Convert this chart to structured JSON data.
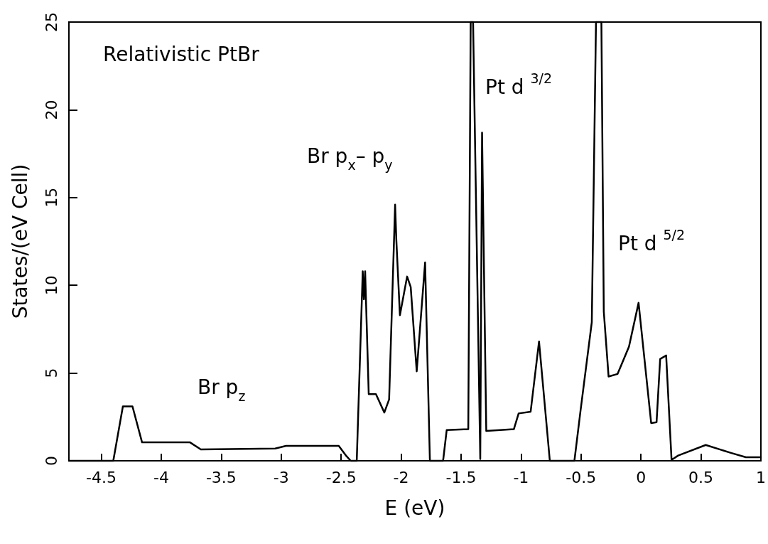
{
  "chart_data": {
    "type": "line",
    "xlabel": "E (eV)",
    "ylabel": "States/(eV Cell)",
    "x": [
      -4.77,
      -4.4,
      -4.32,
      -4.24,
      -4.16,
      -3.76,
      -3.67,
      -3.05,
      -2.96,
      -2.52,
      -2.46,
      -2.42,
      -2.37,
      -2.32,
      -2.31,
      -2.3,
      -2.27,
      -2.21,
      -2.14,
      -2.1,
      -2.05,
      -2.04,
      -2.01,
      -1.95,
      -1.92,
      -1.87,
      -1.8,
      -1.76,
      -1.65,
      -1.62,
      -1.44,
      -1.42,
      -1.4,
      -1.34,
      -1.325,
      -1.29,
      -1.06,
      -1.02,
      -0.92,
      -0.85,
      -0.76,
      -0.555,
      -0.505,
      -0.41,
      -0.375,
      -0.33,
      -0.31,
      -0.27,
      -0.195,
      -0.1,
      -0.02,
      0.085,
      0.13,
      0.16,
      0.21,
      0.255,
      0.31,
      0.54,
      0.75,
      0.875,
      1.0
    ],
    "values": [
      0,
      0,
      3.1,
      3.1,
      1.05,
      1.05,
      0.65,
      0.7,
      0.85,
      0.85,
      0.3,
      0,
      0,
      10.8,
      9.2,
      10.8,
      3.8,
      3.8,
      2.75,
      3.5,
      14.6,
      12.6,
      8.3,
      10.5,
      9.9,
      5.1,
      11.3,
      0,
      0,
      1.75,
      1.8,
      25,
      25,
      0.1,
      18.7,
      1.7,
      1.8,
      2.7,
      2.8,
      6.8,
      0,
      0,
      2.8,
      7.9,
      25,
      25,
      8.5,
      4.8,
      4.95,
      6.5,
      9.0,
      2.15,
      2.2,
      5.8,
      6.0,
      0.05,
      0.3,
      0.9,
      0.45,
      0.2,
      0.2
    ],
    "color": "#000000",
    "marker": "none",
    "line_style": "solid",
    "grid": false,
    "xlim": [
      -4.77,
      1
    ],
    "xticks": [
      -4.5,
      -4,
      -3.5,
      -3,
      -2.5,
      -2,
      -1.5,
      -1,
      -0.5,
      0,
      0.5,
      1
    ],
    "ylim": [
      0,
      25
    ],
    "yticks": [
      0,
      5,
      10,
      15,
      20,
      25
    ],
    "annotations": [
      "Relativistic PtBr",
      "Br p$_{z}$",
      "Br p$_{x}$– p$_{y}$",
      "Pt d $^{3/2}$",
      "Pt d $^{5/2}$"
    ]
  }
}
